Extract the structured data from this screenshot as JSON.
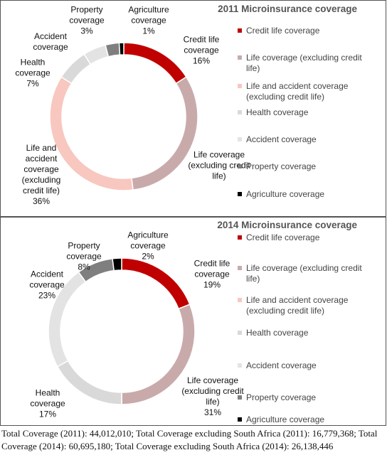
{
  "chart_data": [
    {
      "type": "donut",
      "title": "2011 Microinsurance coverage",
      "categories": [
        "Credit life coverage",
        "Life coverage (excluding credit life)",
        "Life and accident coverage (excluding credit life)",
        "Health coverage",
        "Accident coverage",
        "Property coverage",
        "Agriculture coverage"
      ],
      "colors": [
        "#c00000",
        "#c9aaab",
        "#f8c7bf",
        "#d9d9d9",
        "#e3e3e3",
        "#7f7f7f",
        "#000000"
      ],
      "values": [
        16,
        32,
        36,
        7,
        5,
        3,
        1
      ],
      "value_labels": [
        "16%",
        null,
        "36%",
        "7%",
        null,
        "3%",
        "1%"
      ]
    },
    {
      "type": "donut",
      "title": "2014 Microinsurance coverage",
      "categories": [
        "Credit life coverage",
        "Life coverage (excluding credit life)",
        "Life and accident coverage (excluding credit life)",
        "Health coverage",
        "Accident coverage",
        "Property coverage",
        "Agriculture coverage"
      ],
      "colors": [
        "#c00000",
        "#c9aaab",
        "#f8c7bf",
        "#d9d9d9",
        "#e3e3e3",
        "#7f7f7f",
        "#000000"
      ],
      "values": [
        19,
        31,
        0,
        17,
        23,
        8,
        2
      ],
      "value_labels": [
        "19%",
        "31%",
        null,
        "17%",
        "23%",
        "8%",
        "2%"
      ]
    }
  ],
  "caption": "Total Coverage (2011): 44,012,010; Total Coverage excluding South Africa (2011): 16,779,368; Total Coverage (2014): 60,695,180; Total Coverage excluding South Africa (2014): 26,138,446"
}
